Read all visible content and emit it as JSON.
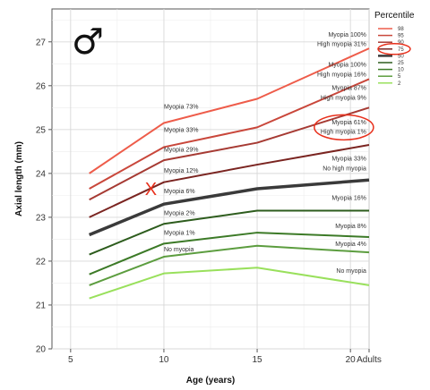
{
  "chart_data": {
    "type": "line",
    "xlabel": "Age (years)",
    "ylabel": "Axial length (mm)",
    "xlim": [
      4,
      21
    ],
    "ylim": [
      20,
      27.75
    ],
    "grid": true,
    "x": [
      6,
      10,
      15,
      21
    ],
    "x_tick_values": [
      5,
      10,
      15,
      20,
      21
    ],
    "x_tick_labels": [
      "5",
      "10",
      "15",
      "20",
      "Adults"
    ],
    "y_ticks": [
      20,
      21,
      22,
      23,
      24,
      25,
      26,
      27
    ],
    "symbol": "♂",
    "legend_title": "Percentile",
    "legend_position": "top-right",
    "series": [
      {
        "name": "98",
        "color": "#ee5c4a",
        "width": 2,
        "values": [
          24.0,
          25.15,
          25.7,
          26.85
        ]
      },
      {
        "name": "95",
        "color": "#c9473b",
        "width": 2,
        "values": [
          23.65,
          24.6,
          25.05,
          26.15
        ]
      },
      {
        "name": "90",
        "color": "#a63a33",
        "width": 2,
        "values": [
          23.4,
          24.3,
          24.7,
          25.5
        ]
      },
      {
        "name": "75",
        "color": "#7a2420",
        "width": 2,
        "values": [
          23.0,
          23.8,
          24.2,
          24.65
        ]
      },
      {
        "name": "50",
        "color": "#3a3a3a",
        "width": 3.5,
        "values": [
          22.6,
          23.3,
          23.65,
          23.85
        ]
      },
      {
        "name": "25",
        "color": "#2d5c1d",
        "width": 2,
        "values": [
          22.15,
          22.85,
          23.15,
          23.15
        ]
      },
      {
        "name": "10",
        "color": "#3c7a27",
        "width": 2,
        "values": [
          21.7,
          22.4,
          22.65,
          22.55
        ]
      },
      {
        "name": "5",
        "color": "#5c9d3f",
        "width": 2,
        "values": [
          21.45,
          22.1,
          22.35,
          22.2
        ]
      },
      {
        "name": "2",
        "color": "#99e05c",
        "width": 2,
        "values": [
          21.15,
          21.72,
          21.85,
          21.45
        ]
      }
    ],
    "annotations": [
      {
        "text": "Myopia 73%",
        "x": 10.0,
        "y": 25.48
      },
      {
        "text": "Myopia 33%",
        "x": 10.0,
        "y": 24.95
      },
      {
        "text": "Myopia 29%",
        "x": 10.0,
        "y": 24.5
      },
      {
        "text": "Myopia 12%",
        "x": 10.0,
        "y": 24.02
      },
      {
        "text": "Myopia 6%",
        "x": 10.0,
        "y": 23.55
      },
      {
        "text": "Myopia 2%",
        "x": 10.0,
        "y": 23.05
      },
      {
        "text": "Myopia 1%",
        "x": 10.0,
        "y": 22.6
      },
      {
        "text": "No myopia",
        "x": 10.0,
        "y": 22.22
      },
      {
        "text": "Myopia 100%",
        "x": 20.85,
        "y": 27.12
      },
      {
        "text": "High myopia 31%",
        "x": 20.85,
        "y": 26.9
      },
      {
        "text": "Myopia 100%",
        "x": 20.85,
        "y": 26.43
      },
      {
        "text": "High myopia 16%",
        "x": 20.85,
        "y": 26.21
      },
      {
        "text": "Myopia 87%",
        "x": 20.85,
        "y": 25.9
      },
      {
        "text": "High myopia 9%",
        "x": 20.85,
        "y": 25.68
      },
      {
        "text": "Myopia 61%",
        "x": 20.85,
        "y": 25.12
      },
      {
        "text": "High myopia 1%",
        "x": 20.85,
        "y": 24.9
      },
      {
        "text": "Myopia 33%",
        "x": 20.85,
        "y": 24.29
      },
      {
        "text": "No high myopia",
        "x": 20.85,
        "y": 24.07
      },
      {
        "text": "Myopia 16%",
        "x": 20.85,
        "y": 23.4
      },
      {
        "text": "Myopia 8%",
        "x": 20.85,
        "y": 22.75
      },
      {
        "text": "Myopia 4%",
        "x": 20.85,
        "y": 22.35
      },
      {
        "text": "No myopia",
        "x": 20.85,
        "y": 21.73
      }
    ],
    "marker": {
      "symbol": "X",
      "x": 9.3,
      "y": 23.65,
      "color": "#e8301c"
    },
    "highlights": [
      {
        "target": "Myopia 61% / High myopia 1%",
        "color": "#e8301c"
      },
      {
        "target": "legend 75",
        "color": "#e8301c"
      }
    ]
  }
}
